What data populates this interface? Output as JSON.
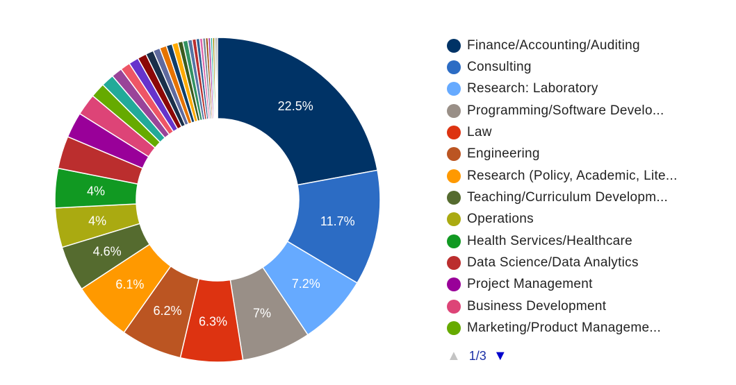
{
  "chart_data": {
    "type": "pie",
    "donut": true,
    "slices": [
      {
        "label": "Finance/Accounting/Auditing",
        "value": 22.5,
        "color": "#003366",
        "data_label": "22.5%"
      },
      {
        "label": "Consulting",
        "value": 11.7,
        "color": "#2c6cc4",
        "data_label": "11.7%"
      },
      {
        "label": "Research: Laboratory",
        "value": 7.2,
        "color": "#66aaff",
        "data_label": "7.2%"
      },
      {
        "label": "Programming/Software Develo...",
        "value": 7.0,
        "color": "#998f87",
        "data_label": "7%"
      },
      {
        "label": "Law",
        "value": 6.3,
        "color": "#dd3311",
        "data_label": "6.3%"
      },
      {
        "label": "Engineering",
        "value": 6.2,
        "color": "#bb5522",
        "data_label": "6.2%"
      },
      {
        "label": "Research (Policy, Academic, Lite...",
        "value": 6.1,
        "color": "#ff9900",
        "data_label": "6.1%"
      },
      {
        "label": "Teaching/Curriculum Developm...",
        "value": 4.6,
        "color": "#556b2f",
        "data_label": "4.6%"
      },
      {
        "label": "Operations",
        "value": 4.0,
        "color": "#aaaa11",
        "data_label": "4%"
      },
      {
        "label": "Health Services/Healthcare",
        "value": 4.0,
        "color": "#119922",
        "data_label": "4%"
      },
      {
        "label": "Data Science/Data Analytics",
        "value": 3.3,
        "color": "#bb2e2e",
        "data_label": ""
      },
      {
        "label": "Project Management",
        "value": 2.6,
        "color": "#990099",
        "data_label": ""
      },
      {
        "label": "Business Development",
        "value": 2.2,
        "color": "#dd4477",
        "data_label": ""
      },
      {
        "label": "Marketing/Product Manageme...",
        "value": 1.5,
        "color": "#66aa00",
        "data_label": ""
      },
      {
        "value": 1.3,
        "color": "#22aa99"
      },
      {
        "value": 1.1,
        "color": "#994499"
      },
      {
        "value": 1.0,
        "color": "#ee5566"
      },
      {
        "value": 1.0,
        "color": "#6633cc"
      },
      {
        "value": 0.9,
        "color": "#8b0707"
      },
      {
        "value": 0.8,
        "color": "#1a2f4a"
      },
      {
        "value": 0.7,
        "color": "#5f6a9e"
      },
      {
        "value": 0.7,
        "color": "#e67300"
      },
      {
        "value": 0.6,
        "color": "#0f3d68"
      },
      {
        "value": 0.6,
        "color": "#ffaa00"
      },
      {
        "value": 0.5,
        "color": "#3b5b1f"
      },
      {
        "value": 0.5,
        "color": "#329262"
      },
      {
        "value": 0.45,
        "color": "#5574a6"
      },
      {
        "value": 0.4,
        "color": "#b82e2e"
      },
      {
        "value": 0.35,
        "color": "#316395"
      },
      {
        "value": 0.3,
        "color": "#dd66aa"
      },
      {
        "value": 0.3,
        "color": "#7a8c99"
      },
      {
        "value": 0.25,
        "color": "#994400"
      },
      {
        "value": 0.25,
        "color": "#aa44aa"
      },
      {
        "value": 0.2,
        "color": "#22aa99"
      },
      {
        "value": 0.2,
        "color": "#998800"
      },
      {
        "value": 0.15,
        "color": "#665544"
      },
      {
        "value": 0.15,
        "color": "#333333"
      }
    ],
    "legend_position": "right",
    "legend_page": "1/3"
  }
}
